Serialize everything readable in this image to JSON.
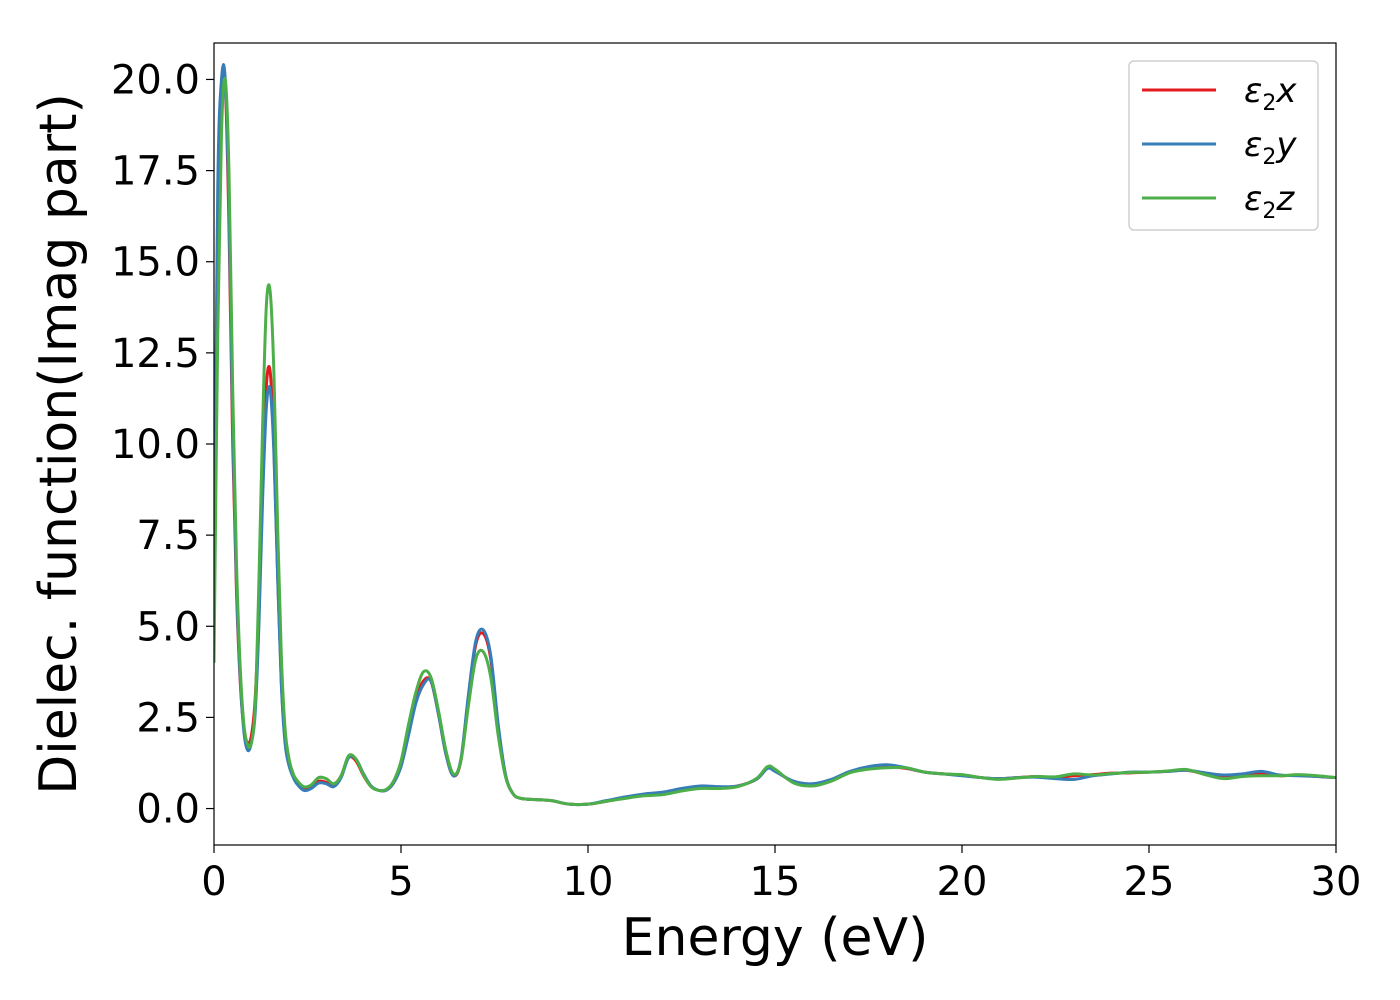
{
  "chart_data": {
    "type": "line",
    "xlabel": "Energy (eV)",
    "ylabel": "Dielec. function(Imag part)",
    "xlim": [
      0,
      30
    ],
    "ylim": [
      -1.0,
      21.0
    ],
    "xticks": [
      0,
      5,
      10,
      15,
      20,
      25,
      30
    ],
    "xtick_labels": [
      "0",
      "5",
      "10",
      "15",
      "20",
      "25",
      "30"
    ],
    "yticks": [
      0,
      2.5,
      5,
      7.5,
      10,
      12.5,
      15,
      17.5,
      20
    ],
    "ytick_labels": [
      "0.0",
      "2.5",
      "5.0",
      "7.5",
      "10.0",
      "12.5",
      "15.0",
      "17.5",
      "20.0"
    ],
    "grid": false,
    "legend_position": "top-right",
    "series": [
      {
        "name": "ε2x",
        "legend_base": "ε",
        "legend_sub": "2",
        "legend_var": "x",
        "color": "#e41a1c",
        "x": [
          0,
          0.1,
          0.2,
          0.3,
          0.4,
          0.5,
          0.6,
          0.7,
          0.8,
          0.9,
          1.0,
          1.1,
          1.2,
          1.3,
          1.4,
          1.5,
          1.6,
          1.7,
          1.8,
          1.9,
          2.0,
          2.1,
          2.2,
          2.4,
          2.6,
          2.8,
          3.0,
          3.2,
          3.4,
          3.6,
          3.8,
          4.0,
          4.2,
          4.4,
          4.6,
          4.8,
          5.0,
          5.2,
          5.4,
          5.6,
          5.8,
          6.0,
          6.2,
          6.4,
          6.6,
          6.8,
          7.0,
          7.2,
          7.4,
          7.6,
          7.8,
          8.0,
          8.2,
          8.5,
          9,
          9.5,
          10,
          10.5,
          11,
          11.5,
          12,
          12.5,
          13,
          13.5,
          14,
          14.5,
          14.8,
          15,
          15.5,
          16,
          16.5,
          17,
          17.5,
          18,
          18.5,
          19,
          19.5,
          20,
          20.5,
          21,
          21.5,
          22,
          22.5,
          23,
          23.5,
          24,
          24.5,
          25,
          25.5,
          26,
          26.5,
          27,
          27.5,
          28,
          28.5,
          29,
          29.5,
          30
        ],
        "y": [
          5.0,
          16.0,
          19.8,
          19.9,
          16.0,
          10.0,
          6.0,
          3.5,
          2.2,
          1.8,
          2.0,
          3.0,
          5.5,
          9.0,
          11.6,
          12.0,
          10.0,
          6.5,
          3.5,
          1.9,
          1.3,
          1.0,
          0.75,
          0.55,
          0.6,
          0.75,
          0.72,
          0.65,
          0.9,
          1.4,
          1.3,
          0.9,
          0.6,
          0.5,
          0.5,
          0.7,
          1.2,
          2.1,
          3.0,
          3.5,
          3.5,
          2.6,
          1.5,
          0.9,
          1.3,
          3.0,
          4.5,
          4.8,
          4.1,
          2.2,
          0.9,
          0.4,
          0.28,
          0.25,
          0.22,
          0.12,
          0.12,
          0.2,
          0.3,
          0.38,
          0.42,
          0.5,
          0.58,
          0.58,
          0.62,
          0.8,
          1.12,
          1.05,
          0.72,
          0.65,
          0.78,
          1.0,
          1.1,
          1.15,
          1.1,
          1.0,
          0.95,
          0.92,
          0.85,
          0.82,
          0.85,
          0.88,
          0.85,
          0.9,
          0.93,
          0.97,
          0.98,
          1.0,
          1.02,
          1.05,
          0.95,
          0.9,
          0.92,
          0.98,
          0.9,
          0.92,
          0.88,
          0.85
        ]
      },
      {
        "name": "ε2y",
        "legend_base": "ε",
        "legend_sub": "2",
        "legend_var": "y",
        "color": "#377eb8",
        "x": [
          0,
          0.1,
          0.2,
          0.3,
          0.4,
          0.5,
          0.6,
          0.7,
          0.8,
          0.9,
          1.0,
          1.1,
          1.2,
          1.3,
          1.4,
          1.5,
          1.6,
          1.7,
          1.8,
          1.9,
          2.0,
          2.1,
          2.2,
          2.4,
          2.6,
          2.8,
          3.0,
          3.2,
          3.4,
          3.6,
          3.8,
          4.0,
          4.2,
          4.4,
          4.6,
          4.8,
          5.0,
          5.2,
          5.4,
          5.6,
          5.8,
          6.0,
          6.2,
          6.4,
          6.6,
          6.8,
          7.0,
          7.2,
          7.4,
          7.6,
          7.8,
          8.0,
          8.2,
          8.5,
          9,
          9.5,
          10,
          10.5,
          11,
          11.5,
          12,
          12.5,
          13,
          13.5,
          14,
          14.5,
          14.8,
          15,
          15.5,
          16,
          16.5,
          17,
          17.5,
          18,
          18.5,
          19,
          19.5,
          20,
          20.5,
          21,
          21.5,
          22,
          22.5,
          23,
          23.5,
          24,
          24.5,
          25,
          25.5,
          26,
          26.5,
          27,
          27.5,
          28,
          28.5,
          29,
          29.5,
          30
        ],
        "y": [
          6.0,
          17.0,
          20.0,
          20.0,
          16.5,
          10.5,
          6.2,
          3.6,
          2.1,
          1.6,
          1.8,
          2.6,
          5.0,
          8.5,
          11.0,
          11.5,
          9.8,
          6.4,
          3.4,
          1.8,
          1.2,
          0.9,
          0.7,
          0.5,
          0.55,
          0.7,
          0.68,
          0.6,
          0.85,
          1.4,
          1.35,
          0.95,
          0.62,
          0.5,
          0.5,
          0.7,
          1.15,
          2.0,
          2.9,
          3.4,
          3.5,
          2.6,
          1.5,
          0.9,
          1.35,
          3.1,
          4.6,
          4.9,
          4.2,
          2.3,
          0.9,
          0.4,
          0.28,
          0.25,
          0.22,
          0.12,
          0.12,
          0.22,
          0.32,
          0.4,
          0.45,
          0.55,
          0.62,
          0.6,
          0.62,
          0.8,
          1.1,
          1.02,
          0.75,
          0.68,
          0.8,
          1.02,
          1.15,
          1.2,
          1.12,
          1.0,
          0.95,
          0.9,
          0.85,
          0.82,
          0.85,
          0.86,
          0.82,
          0.8,
          0.9,
          0.95,
          1.0,
          1.0,
          1.02,
          1.05,
          0.98,
          0.92,
          0.95,
          1.02,
          0.92,
          0.9,
          0.88,
          0.85
        ]
      },
      {
        "name": "ε2z",
        "legend_base": "ε",
        "legend_sub": "2",
        "legend_var": "z",
        "color": "#4daf4a",
        "x": [
          0,
          0.1,
          0.2,
          0.3,
          0.4,
          0.5,
          0.6,
          0.7,
          0.8,
          0.9,
          1.0,
          1.1,
          1.2,
          1.3,
          1.4,
          1.5,
          1.6,
          1.7,
          1.8,
          1.9,
          2.0,
          2.1,
          2.2,
          2.4,
          2.6,
          2.8,
          3.0,
          3.2,
          3.4,
          3.6,
          3.8,
          4.0,
          4.2,
          4.4,
          4.6,
          4.8,
          5.0,
          5.2,
          5.4,
          5.6,
          5.8,
          6.0,
          6.2,
          6.4,
          6.6,
          6.8,
          7.0,
          7.2,
          7.4,
          7.6,
          7.8,
          8.0,
          8.2,
          8.5,
          9,
          9.5,
          10,
          10.5,
          11,
          11.5,
          12,
          12.5,
          13,
          13.5,
          14,
          14.5,
          14.8,
          15,
          15.5,
          16,
          16.5,
          17,
          17.5,
          18,
          18.5,
          19,
          19.5,
          20,
          20.5,
          21,
          21.5,
          22,
          22.5,
          23,
          23.5,
          24,
          24.5,
          25,
          25.5,
          26,
          26.5,
          27,
          27.5,
          28,
          28.5,
          29,
          29.5,
          30
        ],
        "y": [
          4.0,
          13.0,
          18.5,
          20.0,
          17.5,
          11.5,
          6.8,
          3.9,
          2.3,
          1.75,
          1.8,
          2.8,
          6.2,
          10.5,
          13.8,
          14.2,
          12.0,
          7.8,
          4.2,
          2.2,
          1.4,
          1.0,
          0.8,
          0.6,
          0.65,
          0.85,
          0.82,
          0.68,
          0.9,
          1.45,
          1.35,
          0.92,
          0.6,
          0.5,
          0.52,
          0.75,
          1.3,
          2.3,
          3.2,
          3.75,
          3.6,
          2.7,
          1.6,
          0.95,
          1.3,
          2.8,
          4.1,
          4.3,
          3.6,
          2.0,
          0.85,
          0.4,
          0.28,
          0.25,
          0.22,
          0.12,
          0.12,
          0.2,
          0.28,
          0.35,
          0.38,
          0.48,
          0.55,
          0.55,
          0.6,
          0.82,
          1.15,
          1.08,
          0.7,
          0.62,
          0.75,
          0.98,
          1.08,
          1.12,
          1.12,
          1.0,
          0.95,
          0.93,
          0.85,
          0.8,
          0.84,
          0.88,
          0.87,
          0.95,
          0.92,
          0.96,
          0.99,
          1.0,
          1.03,
          1.07,
          0.93,
          0.82,
          0.88,
          0.9,
          0.9,
          0.93,
          0.9,
          0.85
        ]
      }
    ]
  }
}
